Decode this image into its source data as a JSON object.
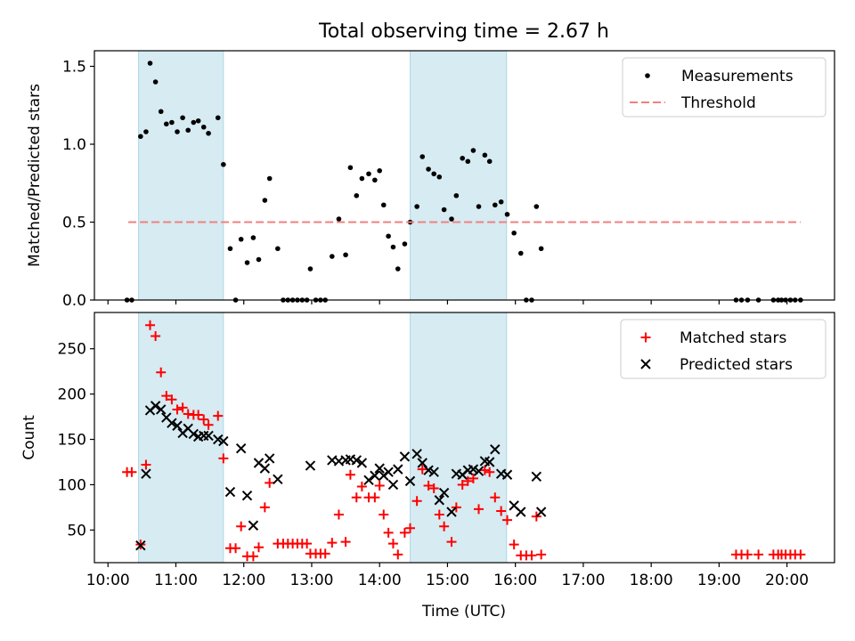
{
  "figure": {
    "title": "Total observing time = 2.67 h",
    "xlabel": "Time (UTC)",
    "x_ticks": [
      "10:00",
      "11:00",
      "12:00",
      "13:00",
      "14:00",
      "15:00",
      "16:00",
      "17:00",
      "18:00",
      "19:00",
      "20:00"
    ]
  },
  "chart_data": [
    {
      "type": "scatter",
      "ylabel": "Matched/Predicted stars",
      "x_unit": "hours UTC",
      "xlim": [
        9.8,
        20.7
      ],
      "ylim": [
        0.0,
        1.6
      ],
      "y_ticks": [
        "0.0",
        "0.5",
        "1.0",
        "1.5"
      ],
      "grid": false,
      "legend_placement": "upper right",
      "shaded_intervals": [
        [
          10.45,
          11.7
        ],
        [
          14.45,
          15.87
        ]
      ],
      "shade_color": "#add8e6",
      "series": [
        {
          "name": "Measurements",
          "marker": "dot",
          "color": "#000000",
          "points": [
            [
              10.28,
              0.0
            ],
            [
              10.35,
              0.0
            ],
            [
              10.48,
              1.05
            ],
            [
              10.56,
              1.08
            ],
            [
              10.62,
              1.52
            ],
            [
              10.7,
              1.4
            ],
            [
              10.78,
              1.21
            ],
            [
              10.86,
              1.13
            ],
            [
              10.94,
              1.14
            ],
            [
              11.02,
              1.08
            ],
            [
              11.1,
              1.17
            ],
            [
              11.18,
              1.09
            ],
            [
              11.26,
              1.14
            ],
            [
              11.33,
              1.15
            ],
            [
              11.41,
              1.11
            ],
            [
              11.48,
              1.07
            ],
            [
              11.62,
              1.17
            ],
            [
              11.7,
              0.87
            ],
            [
              11.8,
              0.33
            ],
            [
              11.88,
              0.0
            ],
            [
              11.96,
              0.39
            ],
            [
              12.05,
              0.24
            ],
            [
              12.14,
              0.4
            ],
            [
              12.22,
              0.26
            ],
            [
              12.31,
              0.64
            ],
            [
              12.38,
              0.78
            ],
            [
              12.5,
              0.33
            ],
            [
              12.58,
              0.0
            ],
            [
              12.65,
              0.0
            ],
            [
              12.72,
              0.0
            ],
            [
              12.79,
              0.0
            ],
            [
              12.86,
              0.0
            ],
            [
              12.93,
              0.0
            ],
            [
              12.98,
              0.2
            ],
            [
              13.06,
              0.0
            ],
            [
              13.13,
              0.0
            ],
            [
              13.2,
              0.0
            ],
            [
              13.3,
              0.28
            ],
            [
              13.4,
              0.52
            ],
            [
              13.5,
              0.29
            ],
            [
              13.57,
              0.85
            ],
            [
              13.66,
              0.67
            ],
            [
              13.74,
              0.78
            ],
            [
              13.84,
              0.81
            ],
            [
              13.93,
              0.77
            ],
            [
              14.0,
              0.83
            ],
            [
              14.06,
              0.61
            ],
            [
              14.13,
              0.41
            ],
            [
              14.2,
              0.34
            ],
            [
              14.27,
              0.2
            ],
            [
              14.37,
              0.36
            ],
            [
              14.45,
              0.5
            ],
            [
              14.55,
              0.6
            ],
            [
              14.63,
              0.92
            ],
            [
              14.72,
              0.84
            ],
            [
              14.8,
              0.81
            ],
            [
              14.88,
              0.79
            ],
            [
              14.95,
              0.58
            ],
            [
              15.06,
              0.52
            ],
            [
              15.13,
              0.67
            ],
            [
              15.22,
              0.91
            ],
            [
              15.3,
              0.89
            ],
            [
              15.38,
              0.96
            ],
            [
              15.46,
              0.6
            ],
            [
              15.55,
              0.93
            ],
            [
              15.62,
              0.89
            ],
            [
              15.7,
              0.61
            ],
            [
              15.79,
              0.63
            ],
            [
              15.88,
              0.55
            ],
            [
              15.98,
              0.43
            ],
            [
              16.08,
              0.3
            ],
            [
              16.16,
              0.0
            ],
            [
              16.24,
              0.0
            ],
            [
              16.31,
              0.6
            ],
            [
              16.38,
              0.33
            ],
            [
              19.25,
              0.0
            ],
            [
              19.33,
              0.0
            ],
            [
              19.42,
              0.0
            ],
            [
              19.58,
              0.0
            ],
            [
              19.8,
              0.0
            ],
            [
              19.87,
              0.0
            ],
            [
              19.92,
              0.0
            ],
            [
              19.98,
              0.0
            ],
            [
              20.05,
              0.0
            ],
            [
              20.12,
              0.0
            ],
            [
              20.2,
              0.0
            ]
          ]
        },
        {
          "name": "Threshold",
          "marker": "dashed-line",
          "color": "#f08080",
          "points": [
            [
              10.3,
              0.5
            ],
            [
              20.2,
              0.5
            ]
          ]
        }
      ]
    },
    {
      "type": "scatter",
      "ylabel": "Count",
      "x_unit": "hours UTC",
      "xlim": [
        9.8,
        20.7
      ],
      "ylim": [
        14,
        290
      ],
      "y_ticks": [
        "50",
        "100",
        "150",
        "200",
        "250"
      ],
      "grid": false,
      "legend_placement": "upper right",
      "shaded_intervals": [
        [
          10.45,
          11.7
        ],
        [
          14.45,
          15.87
        ]
      ],
      "shade_color": "#add8e6",
      "series": [
        {
          "name": "Matched stars",
          "marker": "plus",
          "color": "#ff0000",
          "points": [
            [
              10.28,
              114
            ],
            [
              10.35,
              114
            ],
            [
              10.48,
              34
            ],
            [
              10.56,
              122
            ],
            [
              10.62,
              276
            ],
            [
              10.7,
              264
            ],
            [
              10.78,
              224
            ],
            [
              10.86,
              198
            ],
            [
              10.94,
              194
            ],
            [
              11.02,
              183
            ],
            [
              11.1,
              185
            ],
            [
              11.18,
              178
            ],
            [
              11.26,
              177
            ],
            [
              11.33,
              177
            ],
            [
              11.41,
              172
            ],
            [
              11.48,
              166
            ],
            [
              11.62,
              176
            ],
            [
              11.7,
              129
            ],
            [
              11.8,
              30
            ],
            [
              11.88,
              30
            ],
            [
              11.96,
              54
            ],
            [
              12.05,
              21
            ],
            [
              12.14,
              21
            ],
            [
              12.22,
              31
            ],
            [
              12.31,
              75
            ],
            [
              12.38,
              102
            ],
            [
              12.5,
              35
            ],
            [
              12.58,
              35
            ],
            [
              12.65,
              35
            ],
            [
              12.72,
              35
            ],
            [
              12.79,
              35
            ],
            [
              12.86,
              35
            ],
            [
              12.93,
              35
            ],
            [
              12.98,
              24
            ],
            [
              13.06,
              24
            ],
            [
              13.13,
              24
            ],
            [
              13.2,
              24
            ],
            [
              13.3,
              36
            ],
            [
              13.4,
              67
            ],
            [
              13.5,
              37
            ],
            [
              13.57,
              111
            ],
            [
              13.66,
              86
            ],
            [
              13.74,
              98
            ],
            [
              13.84,
              86
            ],
            [
              13.93,
              86
            ],
            [
              14.0,
              99
            ],
            [
              14.06,
              67
            ],
            [
              14.13,
              47
            ],
            [
              14.2,
              35
            ],
            [
              14.27,
              23
            ],
            [
              14.37,
              47
            ],
            [
              14.45,
              52
            ],
            [
              14.55,
              82
            ],
            [
              14.63,
              117
            ],
            [
              14.72,
              99
            ],
            [
              14.8,
              96
            ],
            [
              14.88,
              67
            ],
            [
              14.95,
              54
            ],
            [
              15.06,
              37
            ],
            [
              15.13,
              75
            ],
            [
              15.22,
              100
            ],
            [
              15.3,
              104
            ],
            [
              15.38,
              107
            ],
            [
              15.46,
              73
            ],
            [
              15.55,
              116
            ],
            [
              15.62,
              114
            ],
            [
              15.7,
              86
            ],
            [
              15.79,
              71
            ],
            [
              15.88,
              61
            ],
            [
              15.98,
              34
            ],
            [
              16.08,
              22
            ],
            [
              16.16,
              22
            ],
            [
              16.24,
              22
            ],
            [
              16.31,
              65
            ],
            [
              16.38,
              23
            ],
            [
              19.25,
              23
            ],
            [
              19.33,
              23
            ],
            [
              19.42,
              23
            ],
            [
              19.58,
              23
            ],
            [
              19.8,
              23
            ],
            [
              19.87,
              23
            ],
            [
              19.92,
              23
            ],
            [
              19.98,
              23
            ],
            [
              20.05,
              23
            ],
            [
              20.12,
              23
            ],
            [
              20.2,
              23
            ]
          ]
        },
        {
          "name": "Predicted stars",
          "marker": "x",
          "color": "#000000",
          "points": [
            [
              10.48,
              33
            ],
            [
              10.56,
              112
            ],
            [
              10.62,
              182
            ],
            [
              10.7,
              187
            ],
            [
              10.78,
              183
            ],
            [
              10.86,
              174
            ],
            [
              10.94,
              168
            ],
            [
              11.02,
              165
            ],
            [
              11.1,
              157
            ],
            [
              11.18,
              162
            ],
            [
              11.26,
              156
            ],
            [
              11.33,
              153
            ],
            [
              11.41,
              154
            ],
            [
              11.48,
              154
            ],
            [
              11.62,
              150
            ],
            [
              11.7,
              148
            ],
            [
              11.8,
              92
            ],
            [
              11.96,
              140
            ],
            [
              12.05,
              88
            ],
            [
              12.14,
              55
            ],
            [
              12.22,
              124
            ],
            [
              12.31,
              118
            ],
            [
              12.38,
              129
            ],
            [
              12.5,
              106
            ],
            [
              12.98,
              121
            ],
            [
              13.3,
              127
            ],
            [
              13.4,
              126
            ],
            [
              13.5,
              127
            ],
            [
              13.57,
              128
            ],
            [
              13.66,
              127
            ],
            [
              13.74,
              124
            ],
            [
              13.84,
              105
            ],
            [
              13.93,
              110
            ],
            [
              14.0,
              118
            ],
            [
              14.06,
              110
            ],
            [
              14.13,
              114
            ],
            [
              14.2,
              100
            ],
            [
              14.27,
              117
            ],
            [
              14.37,
              131
            ],
            [
              14.45,
              104
            ],
            [
              14.55,
              134
            ],
            [
              14.63,
              124
            ],
            [
              14.72,
              116
            ],
            [
              14.8,
              114
            ],
            [
              14.88,
              83
            ],
            [
              14.95,
              91
            ],
            [
              15.06,
              70
            ],
            [
              15.13,
              112
            ],
            [
              15.22,
              111
            ],
            [
              15.3,
              116
            ],
            [
              15.38,
              117
            ],
            [
              15.46,
              115
            ],
            [
              15.55,
              126
            ],
            [
              15.62,
              125
            ],
            [
              15.7,
              139
            ],
            [
              15.79,
              112
            ],
            [
              15.88,
              111
            ],
            [
              15.98,
              77
            ],
            [
              16.08,
              70
            ],
            [
              16.31,
              109
            ],
            [
              16.38,
              70
            ]
          ]
        }
      ]
    }
  ]
}
